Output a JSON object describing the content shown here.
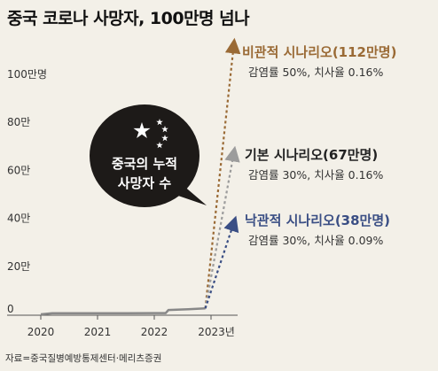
{
  "title": "중국 코로나 사망자, 100만명 넘나",
  "source": "자료=중국질병예방통제센터·메리츠증권",
  "bubble": {
    "line1": "중국의 누적",
    "line2": "사망자 수",
    "icon": "china-flag-stars-icon"
  },
  "colors": {
    "background": "#f3f0e8",
    "pessimistic": "#9a6a35",
    "base": "#9c9c9c",
    "optimistic": "#3a4e84",
    "history": "#888888",
    "bubble": "#1d1a18"
  },
  "chart_data": {
    "type": "line",
    "title": "중국 코로나 사망자, 100만명 넘나",
    "ylim": [
      0,
      1120000
    ],
    "y_ticks": [
      {
        "value": 0,
        "label": "0"
      },
      {
        "value": 200000,
        "label": "20만"
      },
      {
        "value": 400000,
        "label": "40만"
      },
      {
        "value": 600000,
        "label": "60만"
      },
      {
        "value": 800000,
        "label": "80만"
      },
      {
        "value": 1000000,
        "label": "100만명"
      }
    ],
    "x_ticks": [
      {
        "value": 2020,
        "label": "2020"
      },
      {
        "value": 2021,
        "label": "2021"
      },
      {
        "value": 2022,
        "label": "2022"
      },
      {
        "value": 2023,
        "label": "2023년"
      }
    ],
    "grid": false,
    "historical": {
      "x": [
        2020.0,
        2020.2,
        2020.5,
        2021.0,
        2021.5,
        2022.0,
        2022.2,
        2022.25,
        2022.6,
        2022.9
      ],
      "y": [
        0,
        4600,
        4700,
        4800,
        4900,
        5000,
        5200,
        18000,
        21000,
        25000
      ]
    },
    "scenarios": [
      {
        "name": "비관적 시나리오(112만명)",
        "detail": "감염률 50%, 치사율 0.16%",
        "start": [
          2022.9,
          25000
        ],
        "end": [
          2023.4,
          1120000
        ],
        "color": "#9a6a35"
      },
      {
        "name": "기본 시나리오(67만명)",
        "detail": "감염률 30%, 치사율 0.16%",
        "start": [
          2022.9,
          25000
        ],
        "end": [
          2023.4,
          670000
        ],
        "color": "#9c9c9c"
      },
      {
        "name": "낙관적 시나리오(38만명)",
        "detail": "감염률 30%, 치사율 0.09%",
        "start": [
          2022.9,
          25000
        ],
        "end": [
          2023.4,
          380000
        ],
        "color": "#3a4e84"
      }
    ]
  }
}
